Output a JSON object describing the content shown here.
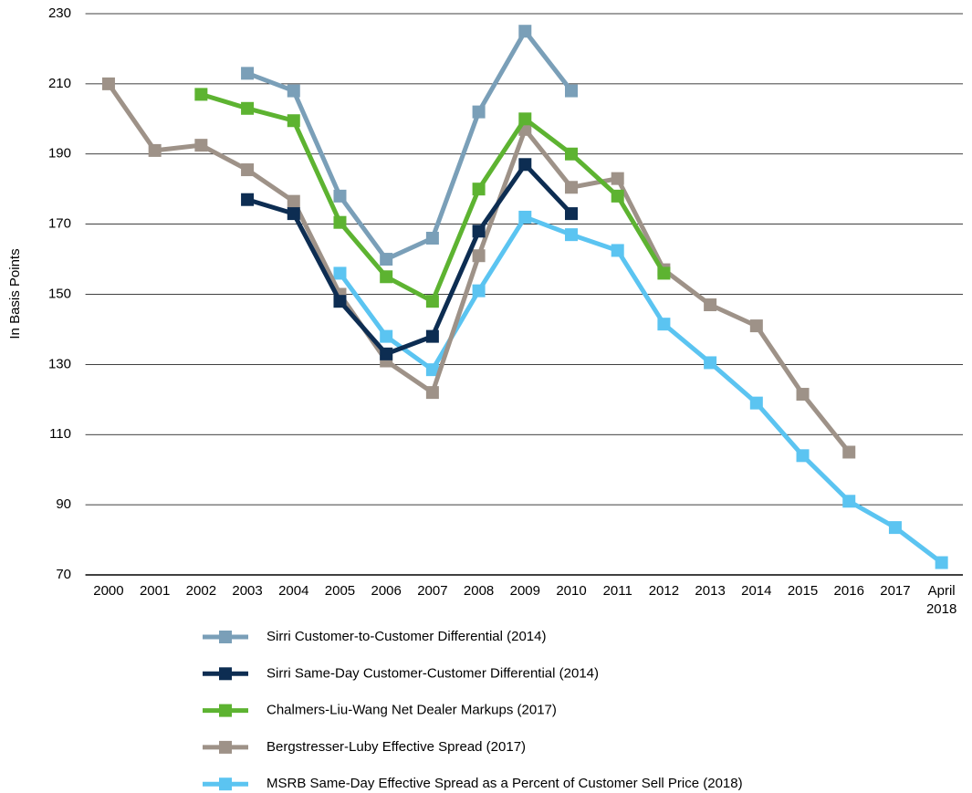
{
  "chart_data": {
    "type": "line",
    "y_axis_label": "In Basis Points",
    "categories": [
      "2000",
      "2001",
      "2002",
      "2003",
      "2004",
      "2005",
      "2006",
      "2007",
      "2008",
      "2009",
      "2010",
      "2011",
      "2012",
      "2013",
      "2014",
      "2015",
      "2016",
      "2017",
      "April 2018"
    ],
    "ylim": [
      70,
      230
    ],
    "yticks": [
      70,
      90,
      110,
      130,
      150,
      170,
      190,
      210,
      230
    ],
    "grid": true,
    "legend": "bottom",
    "series": [
      {
        "name": "Sirri Customer-to-Customer Differential (2014)",
        "color": "#7a9fb8",
        "values": [
          null,
          null,
          null,
          213,
          208,
          178,
          160,
          166,
          202,
          225,
          208,
          null,
          null,
          null,
          null,
          null,
          null,
          null,
          null
        ]
      },
      {
        "name": "Sirri Same-Day Customer-Customer Differential (2014)",
        "color": "#0d2d52",
        "values": [
          null,
          null,
          null,
          177,
          173,
          148,
          133,
          138,
          168,
          187,
          173,
          null,
          null,
          null,
          null,
          null,
          null,
          null,
          null
        ]
      },
      {
        "name": "Chalmers-Liu-Wang Net Dealer Markups (2017)",
        "color": "#5db331",
        "values": [
          null,
          null,
          207,
          203,
          199.5,
          170.5,
          155,
          148,
          180,
          200,
          190,
          178,
          156,
          null,
          null,
          null,
          null,
          null,
          null
        ]
      },
      {
        "name": "Bergstresser-Luby Effective Spread (2017)",
        "color": "#9e9288",
        "values": [
          210,
          191,
          192.5,
          185.5,
          176.5,
          150,
          131,
          122,
          161,
          197,
          180.5,
          183,
          157,
          147,
          141,
          121.5,
          105,
          null,
          null
        ]
      },
      {
        "name": "MSRB Same-Day Effective Spread as a Percent of Customer Sell Price (2018)",
        "color": "#5bc4f1",
        "values": [
          null,
          null,
          null,
          null,
          null,
          156,
          138,
          128.5,
          151,
          172,
          167,
          162.5,
          141.5,
          130.5,
          119,
          104,
          91,
          83.5,
          73.5
        ]
      }
    ]
  }
}
